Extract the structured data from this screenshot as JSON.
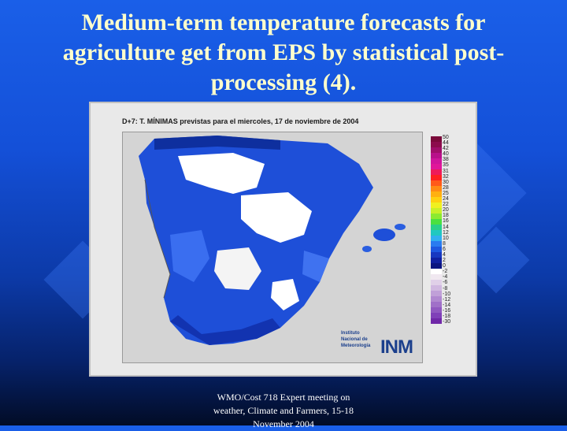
{
  "slide": {
    "title_lines": [
      "Medium-term temperature forecasts for",
      "agriculture get from EPS by statistical post-",
      "processing (4)."
    ],
    "footer_lines": [
      "WMO/Cost 718 Expert meeting on",
      "weather, Climate and Farmers, 15-18",
      "November 2004"
    ]
  },
  "map": {
    "caption": "D+7: T. MÍNIMAS previstas para el miercoles, 17 de noviembre de 2004",
    "institute_lines": [
      "Instituto",
      "Nacional de",
      "Meteorología"
    ],
    "logo_text": "INM",
    "legend": {
      "labels": [
        "50",
        "44",
        "42",
        "40",
        "38",
        "35",
        "31",
        "32",
        "30",
        "28",
        "25",
        "24",
        "22",
        "20",
        "18",
        "16",
        "14",
        "12",
        "10",
        "8",
        "6",
        "4",
        "2",
        "0",
        "-2",
        "-4",
        "-6",
        "-8",
        "-10",
        "-12",
        "-14",
        "-16",
        "-18",
        "-30"
      ],
      "colors": [
        "#7a0a3a",
        "#8c0c4c",
        "#a00e6a",
        "#b8108a",
        "#d0149c",
        "#e0169a",
        "#ee1a5a",
        "#ff2020",
        "#ff5a1a",
        "#ff8a14",
        "#ffb010",
        "#ffd010",
        "#f0f020",
        "#c8f028",
        "#8cea30",
        "#4ae040",
        "#28d08a",
        "#20c8c0",
        "#30b0f0",
        "#2a7cf0",
        "#1e58e0",
        "#1838c0",
        "#1020a0",
        "#0a1480",
        "#ffffff",
        "#f0e8f0",
        "#e0d0e8",
        "#d0b8e0",
        "#c0a0d8",
        "#b088d0",
        "#a070c8",
        "#9058c0",
        "#8040b8",
        "#7028a8"
      ]
    }
  }
}
